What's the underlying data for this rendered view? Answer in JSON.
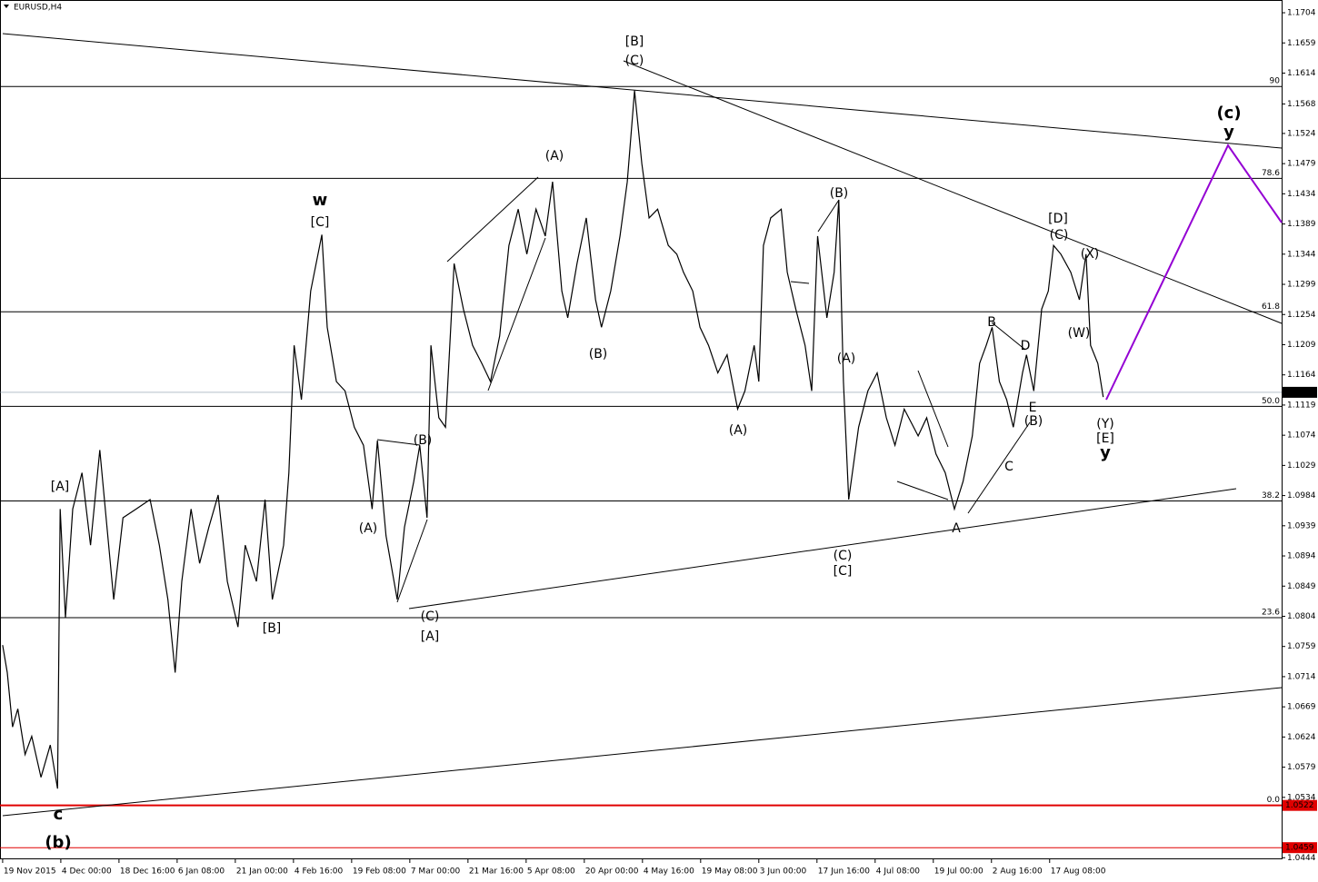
{
  "chart_data": {
    "type": "line",
    "title": "EURUSD,H4",
    "color": "#000000",
    "x": [
      0,
      7,
      15,
      23,
      34,
      44,
      58,
      72,
      83,
      87,
      95,
      106,
      120,
      133,
      147,
      168,
      182,
      202,
      223,
      237,
      250,
      261,
      271,
      285,
      298,
      312,
      326,
      340,
      356,
      367,
      384,
      397,
      408,
      425,
      433,
      441,
      452,
      466,
      483,
      491,
      505,
      518,
      532,
      546,
      559,
      567,
      580,
      597,
      608,
      622,
      631,
      642,
      648,
      660,
      670,
      683,
      697,
      711,
      725,
      738,
      752,
      766,
      780,
      793,
      807,
      821,
      832,
      846,
      855,
      869,
      883,
      897,
      906,
      920,
      934,
      945,
      956,
      967,
      978,
      991,
      1007,
      1020,
      1030,
      1044,
      1055,
      1068,
      1082,
      1096,
      1112,
      1123,
      1137,
      1144,
      1151,
      1162,
      1178,
      1187,
      1200,
      1214,
      1224,
      1233,
      1247,
      1258,
      1265,
      1272,
      1280,
      1295,
      1309,
      1323,
      1337,
      1350,
      1364,
      1385,
      1398,
      1412,
      1426,
      1440,
      1453,
      1467,
      1478,
      1488,
      1497,
      1508,
      1519,
      1529,
      1543,
      1549,
      1560,
      1572,
      1582,
      1590,
      1601,
      1616,
      1629,
      1639,
      1646,
      1657,
      1665
    ],
    "values": [
      1.0761,
      1.072,
      1.0639,
      1.0666,
      1.0598,
      1.0625,
      1.0564,
      1.0612,
      1.0547,
      1.0964,
      1.0802,
      1.0964,
      1.1018,
      1.091,
      1.1052,
      1.0829,
      1.0951,
      1.0964,
      1.0978,
      1.091,
      1.0829,
      1.072,
      1.0856,
      1.0964,
      1.0883,
      1.0937,
      1.0985,
      1.0856,
      1.0788,
      1.091,
      1.0856,
      1.0978,
      1.0829,
      1.091,
      1.1018,
      1.1208,
      1.1127,
      1.1289,
      1.1373,
      1.1235,
      1.1154,
      1.114,
      1.1086,
      1.1059,
      1.0964,
      1.1066,
      1.0924,
      1.0829,
      1.0937,
      1.1005,
      1.1059,
      1.0951,
      1.1208,
      1.11,
      1.1086,
      1.133,
      1.1262,
      1.1208,
      1.1181,
      1.1154,
      1.1222,
      1.1357,
      1.1411,
      1.1344,
      1.1411,
      1.1371,
      1.1452,
      1.1289,
      1.1249,
      1.133,
      1.1398,
      1.1276,
      1.1235,
      1.1289,
      1.1371,
      1.1452,
      1.1588,
      1.1479,
      1.1398,
      1.1411,
      1.1357,
      1.1344,
      1.1317,
      1.1289,
      1.1235,
      1.1208,
      1.1167,
      1.1194,
      1.1113,
      1.114,
      1.1208,
      1.1154,
      1.1357,
      1.1398,
      1.1411,
      1.1317,
      1.1262,
      1.1208,
      1.114,
      1.1371,
      1.1249,
      1.1317,
      1.1425,
      1.1154,
      1.0978,
      1.1086,
      1.114,
      1.1167,
      1.11,
      1.1059,
      1.1113,
      1.1073,
      1.11,
      1.1046,
      1.1018,
      1.0964,
      1.1005,
      1.1073,
      1.1181,
      1.1208,
      1.1235,
      1.1154,
      1.1127,
      1.1086,
      1.1167,
      1.1194,
      1.114,
      1.1262,
      1.1289,
      1.1357,
      1.1344,
      1.1317,
      1.1276,
      1.1344,
      1.1208,
      1.1181,
      1.1131
    ],
    "xlim": [
      -4,
      1935
    ],
    "ylim": [
      1.0443,
      1.1723
    ],
    "xticks": [
      {
        "value": 0,
        "label": "19 Nov 2015"
      },
      {
        "value": 88,
        "label": "4 Dec 00:00"
      },
      {
        "value": 176,
        "label": "18 Dec 16:00"
      },
      {
        "value": 264,
        "label": "6 Jan 08:00"
      },
      {
        "value": 352,
        "label": "21 Jan 00:00"
      },
      {
        "value": 440,
        "label": "4 Feb 16:00"
      },
      {
        "value": 528,
        "label": "19 Feb 08:00"
      },
      {
        "value": 616,
        "label": "7 Mar 00:00"
      },
      {
        "value": 704,
        "label": "21 Mar 16:00"
      },
      {
        "value": 792,
        "label": "5 Apr 08:00"
      },
      {
        "value": 880,
        "label": "20 Apr 00:00"
      },
      {
        "value": 968,
        "label": "4 May 16:00"
      },
      {
        "value": 1056,
        "label": "19 May 08:00"
      },
      {
        "value": 1144,
        "label": "3 Jun 00:00"
      },
      {
        "value": 1232,
        "label": "17 Jun 16:00"
      },
      {
        "value": 1320,
        "label": "4 Jul 08:00"
      },
      {
        "value": 1408,
        "label": "19 Jul 00:00"
      },
      {
        "value": 1496,
        "label": "2 Aug 16:00"
      },
      {
        "value": 1584,
        "label": "17 Aug 08:00"
      }
    ],
    "yticks": [
      1.1704,
      1.1659,
      1.1614,
      1.1568,
      1.1524,
      1.1479,
      1.1434,
      1.1389,
      1.1344,
      1.1299,
      1.1254,
      1.1209,
      1.1164,
      1.1119,
      1.1074,
      1.1029,
      1.0984,
      1.0939,
      1.0894,
      1.0849,
      1.0804,
      1.0759,
      1.0714,
      1.0669,
      1.0624,
      1.0579,
      1.0534,
      1.0444
    ],
    "current_price": 1.1138,
    "levels": [
      {
        "value": 1.0522,
        "color": "#e00000"
      },
      {
        "value": 1.0459,
        "color": "#e00000"
      }
    ],
    "fib_levels": [
      {
        "label": "90",
        "value": 1.1594
      },
      {
        "label": "78.6",
        "value": 1.1457
      },
      {
        "label": "61.8",
        "value": 1.1258
      },
      {
        "label": "50.0",
        "value": 1.1117
      },
      {
        "label": "38.2",
        "value": 1.0976
      },
      {
        "label": "23.6",
        "value": 1.0802
      },
      {
        "label": "0.0",
        "value": 1.0522
      }
    ],
    "annotations": [
      {
        "text": "[A]",
        "color": "#2e7d32"
      },
      {
        "text": "[B]",
        "color": "#2e7d32"
      },
      {
        "text": "[C]",
        "color": "#2e7d32"
      },
      {
        "text": "w",
        "color": "#e00000"
      },
      {
        "text": "(A)",
        "color": "#2b2b80"
      },
      {
        "text": "(B)",
        "color": "#2b2b80"
      },
      {
        "text": "(C)",
        "color": "#2b2b80"
      },
      {
        "text": "[A]",
        "color": "#2e7d32"
      },
      {
        "text": "(A)",
        "color": "#2b2b80"
      },
      {
        "text": "(B)",
        "color": "#2b2b80"
      },
      {
        "text": "[B]",
        "color": "#2e7d32"
      },
      {
        "text": "(C)",
        "color": "#2b2b80"
      },
      {
        "text": "(A)",
        "color": "#2b2b80"
      },
      {
        "text": "(B)",
        "color": "#2b2b80"
      },
      {
        "text": "(A)",
        "color": "#2b2b80"
      },
      {
        "text": "(C)",
        "color": "#2b2b80"
      },
      {
        "text": "[C]",
        "color": "#2e7d32"
      },
      {
        "text": "A",
        "color": "#e04040"
      },
      {
        "text": "B",
        "color": "#e04040"
      },
      {
        "text": "C",
        "color": "#e04040"
      },
      {
        "text": "D",
        "color": "#e04040"
      },
      {
        "text": "E",
        "color": "#e04040"
      },
      {
        "text": "(B)",
        "color": "#2b2b80"
      },
      {
        "text": "[D]",
        "color": "#2e7d32"
      },
      {
        "text": "(C)",
        "color": "#2b2b80"
      },
      {
        "text": "(X)",
        "color": "#2b2b80"
      },
      {
        "text": "(W)",
        "color": "#2b2b80"
      },
      {
        "text": "(Y)",
        "color": "#2b2b80"
      },
      {
        "text": "[E]",
        "color": "#2e7d32"
      },
      {
        "text": "y",
        "color": "#e00000"
      },
      {
        "text": "(c)",
        "color": "#000080"
      },
      {
        "text": "y",
        "color": "#e00000"
      },
      {
        "text": "c",
        "color": "#e00000"
      },
      {
        "text": "(b)",
        "color": "#000080"
      }
    ]
  }
}
